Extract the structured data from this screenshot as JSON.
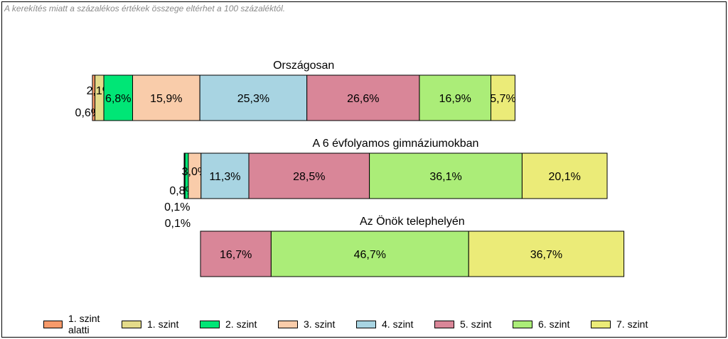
{
  "note": "A kerekítés miatt a  százalékos értékek összege eltérhet a 100 százaléktól.",
  "chart_data": {
    "type": "bar",
    "orientation": "horizontal",
    "stacked": "100%",
    "categories": [
      "Országosan",
      "A 6 évfolyamos gimnáziumokban",
      "Az Önök telephelyén"
    ],
    "series": [
      {
        "name": "1. szint alatti",
        "color": "#f79a6a",
        "values": [
          0.6,
          0.1,
          0.0
        ],
        "labels": [
          "0,6%",
          "0,1%",
          ""
        ]
      },
      {
        "name": "1. szint",
        "color": "#e4db8a",
        "values": [
          2.1,
          0.1,
          0.0
        ],
        "labels": [
          "2,1%",
          "0,1%",
          ""
        ]
      },
      {
        "name": "2. szint",
        "color": "#00e676",
        "values": [
          6.8,
          0.8,
          0.0
        ],
        "labels": [
          "6,8%",
          "0,8%",
          ""
        ]
      },
      {
        "name": "3. szint",
        "color": "#f9ccaa",
        "values": [
          15.9,
          3.0,
          0.0
        ],
        "labels": [
          "15,9%",
          "3,0%",
          ""
        ]
      },
      {
        "name": "4. szint",
        "color": "#a8d4e2",
        "values": [
          25.3,
          11.3,
          0.0
        ],
        "labels": [
          "25,3%",
          "11,3%",
          ""
        ]
      },
      {
        "name": "5. szint",
        "color": "#d98698",
        "values": [
          26.6,
          28.5,
          16.7
        ],
        "labels": [
          "26,6%",
          "28,5%",
          "16,7%"
        ]
      },
      {
        "name": "6. szint",
        "color": "#abed78",
        "values": [
          16.9,
          36.1,
          46.7
        ],
        "labels": [
          "16,9%",
          "36,1%",
          "46,7%"
        ]
      },
      {
        "name": "7. szint",
        "color": "#ebeb78",
        "values": [
          5.7,
          20.1,
          36.7
        ],
        "labels": [
          "5,7%",
          "20,1%",
          "36,7%"
        ]
      }
    ]
  }
}
